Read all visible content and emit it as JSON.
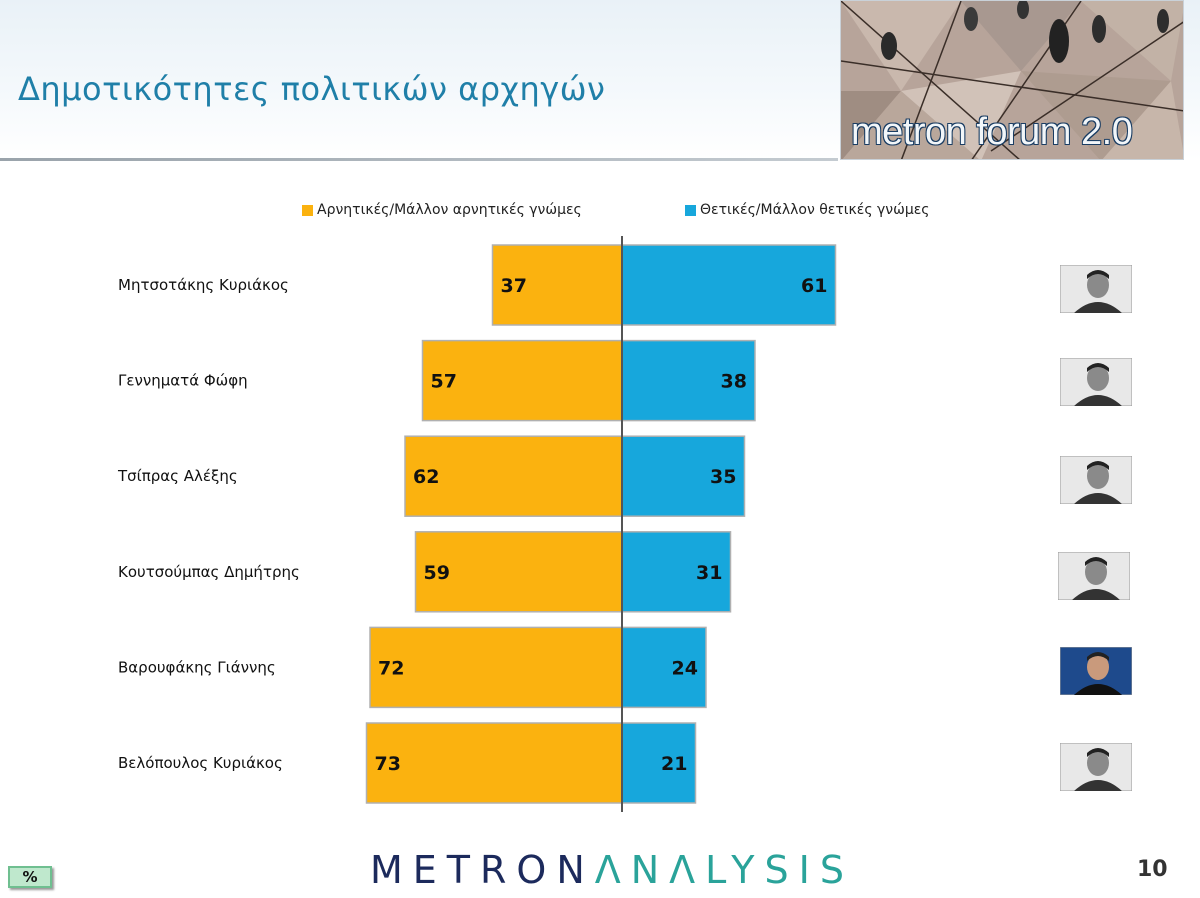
{
  "header": {
    "title": "Δημοτικότητες πολιτικών αρχηγών",
    "banner_text": "metron forum 2.0"
  },
  "legend": {
    "negative_label": "Αρνητικές/Μάλλον αρνητικές γνώμες",
    "positive_label": "Θετικές/Μάλλον θετικές γνώμες"
  },
  "colors": {
    "negative": "#fbb20f",
    "positive": "#17a7dc"
  },
  "chart_data": {
    "type": "bar",
    "orientation": "horizontal-diverging",
    "categories": [
      "Μητσοτάκης Κυριάκος",
      "Γεννηματά Φώφη",
      "Τσίπρας Αλέξης",
      "Κουτσούμπας Δημήτρης",
      "Βαρουφάκης Γιάννης",
      "Βελόπουλος Κυριάκος"
    ],
    "series": [
      {
        "name": "Αρνητικές/Μάλλον αρνητικές γνώμες",
        "values": [
          37,
          57,
          62,
          59,
          72,
          73
        ]
      },
      {
        "name": "Θετικές/Μάλλον θετικές γνώμες",
        "values": [
          61,
          38,
          35,
          31,
          24,
          21
        ]
      }
    ],
    "unit": "%",
    "legend_position": "top",
    "grid": false
  },
  "photos": [
    {
      "icon": "portrait-photo"
    },
    {
      "icon": "portrait-photo"
    },
    {
      "icon": "portrait-photo"
    },
    {
      "icon": "portrait-photo"
    },
    {
      "icon": "portrait-photo"
    },
    {
      "icon": "portrait-photo"
    }
  ],
  "footer": {
    "logo_part1": "METRON",
    "logo_part2": "ΛNΛLYSIS",
    "page_number": "10",
    "unit_badge": "%"
  }
}
